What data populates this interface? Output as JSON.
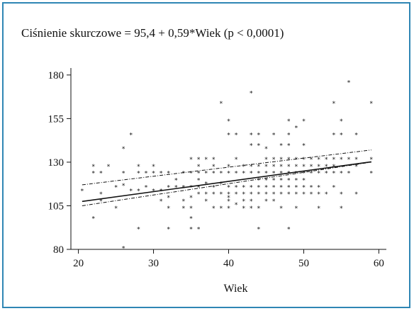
{
  "chart_data": {
    "type": "scatter",
    "title": "Ciśnienie skurczowe = 95,4 + 0,59*Wiek (p < 0,0001)",
    "xlabel": "Wiek",
    "ylabel": "",
    "xlim": [
      19,
      61
    ],
    "ylim": [
      80,
      184
    ],
    "x_ticks": [
      20,
      30,
      40,
      50,
      60
    ],
    "y_ticks": [
      80,
      105,
      130,
      155,
      180
    ],
    "grid": false,
    "marker": "*",
    "regression": {
      "intercept": 95.4,
      "slope": 0.59,
      "x_range": [
        20.5,
        59
      ]
    },
    "confidence_band": {
      "lower": [
        [
          20.5,
          105
        ],
        [
          59,
          130
        ]
      ],
      "upper": [
        [
          20.5,
          117
        ],
        [
          59,
          137
        ]
      ]
    },
    "points": [
      [
        20.5,
        114
      ],
      [
        22,
        128
      ],
      [
        22,
        124
      ],
      [
        22,
        98
      ],
      [
        23,
        112
      ],
      [
        23,
        124
      ],
      [
        23,
        108
      ],
      [
        24,
        128
      ],
      [
        25,
        116
      ],
      [
        25,
        104
      ],
      [
        26,
        138
      ],
      [
        26,
        124
      ],
      [
        26,
        117
      ],
      [
        26,
        81
      ],
      [
        27,
        146
      ],
      [
        27,
        114
      ],
      [
        28,
        128
      ],
      [
        28,
        124
      ],
      [
        28,
        114
      ],
      [
        28,
        92
      ],
      [
        29,
        124
      ],
      [
        29,
        116
      ],
      [
        30,
        128
      ],
      [
        30,
        124
      ],
      [
        30,
        114
      ],
      [
        31,
        124
      ],
      [
        31,
        114
      ],
      [
        31,
        108
      ],
      [
        32,
        124
      ],
      [
        32,
        116
      ],
      [
        32,
        110
      ],
      [
        32,
        104
      ],
      [
        32,
        92
      ],
      [
        33,
        120
      ],
      [
        33,
        116
      ],
      [
        34,
        124
      ],
      [
        34,
        116
      ],
      [
        34,
        108
      ],
      [
        34,
        104
      ],
      [
        35,
        132
      ],
      [
        35,
        124
      ],
      [
        35,
        116
      ],
      [
        35,
        110
      ],
      [
        35,
        104
      ],
      [
        35,
        98
      ],
      [
        35,
        92
      ],
      [
        36,
        132
      ],
      [
        36,
        128
      ],
      [
        36,
        124
      ],
      [
        36,
        120
      ],
      [
        36,
        116
      ],
      [
        36,
        112
      ],
      [
        36,
        92
      ],
      [
        37,
        132
      ],
      [
        37,
        124
      ],
      [
        37,
        118
      ],
      [
        37,
        112
      ],
      [
        37,
        108
      ],
      [
        38,
        132
      ],
      [
        38,
        128
      ],
      [
        38,
        124
      ],
      [
        38,
        116
      ],
      [
        38,
        112
      ],
      [
        38,
        104
      ],
      [
        39,
        164
      ],
      [
        39,
        124
      ],
      [
        39,
        118
      ],
      [
        39,
        112
      ],
      [
        39,
        104
      ],
      [
        40,
        154
      ],
      [
        40,
        146
      ],
      [
        40,
        128
      ],
      [
        40,
        124
      ],
      [
        40,
        116
      ],
      [
        40,
        112
      ],
      [
        40,
        110
      ],
      [
        40,
        108
      ],
      [
        40,
        104
      ],
      [
        41,
        146
      ],
      [
        41,
        132
      ],
      [
        41,
        124
      ],
      [
        41,
        116
      ],
      [
        41,
        112
      ],
      [
        41,
        106
      ],
      [
        42,
        128
      ],
      [
        42,
        124
      ],
      [
        42,
        116
      ],
      [
        42,
        112
      ],
      [
        42,
        108
      ],
      [
        42,
        104
      ],
      [
        43,
        170
      ],
      [
        43,
        146
      ],
      [
        43,
        140
      ],
      [
        43,
        128
      ],
      [
        43,
        124
      ],
      [
        43,
        116
      ],
      [
        43,
        112
      ],
      [
        43,
        108
      ],
      [
        43,
        104
      ],
      [
        44,
        146
      ],
      [
        44,
        140
      ],
      [
        44,
        128
      ],
      [
        44,
        124
      ],
      [
        44,
        120
      ],
      [
        44,
        116
      ],
      [
        44,
        112
      ],
      [
        44,
        104
      ],
      [
        44,
        92
      ],
      [
        45,
        138
      ],
      [
        45,
        132
      ],
      [
        45,
        128
      ],
      [
        45,
        124
      ],
      [
        45,
        120
      ],
      [
        45,
        116
      ],
      [
        45,
        112
      ],
      [
        45,
        108
      ],
      [
        46,
        146
      ],
      [
        46,
        132
      ],
      [
        46,
        128
      ],
      [
        46,
        124
      ],
      [
        46,
        120
      ],
      [
        46,
        116
      ],
      [
        46,
        112
      ],
      [
        46,
        108
      ],
      [
        47,
        140
      ],
      [
        47,
        132
      ],
      [
        47,
        128
      ],
      [
        47,
        124
      ],
      [
        47,
        120
      ],
      [
        47,
        116
      ],
      [
        47,
        112
      ],
      [
        47,
        104
      ],
      [
        48,
        154
      ],
      [
        48,
        146
      ],
      [
        48,
        140
      ],
      [
        48,
        132
      ],
      [
        48,
        128
      ],
      [
        48,
        124
      ],
      [
        48,
        120
      ],
      [
        48,
        116
      ],
      [
        48,
        112
      ],
      [
        48,
        92
      ],
      [
        49,
        150
      ],
      [
        49,
        132
      ],
      [
        49,
        128
      ],
      [
        49,
        124
      ],
      [
        49,
        120
      ],
      [
        49,
        116
      ],
      [
        49,
        112
      ],
      [
        49,
        104
      ],
      [
        50,
        154
      ],
      [
        50,
        140
      ],
      [
        50,
        132
      ],
      [
        50,
        128
      ],
      [
        50,
        124
      ],
      [
        50,
        120
      ],
      [
        50,
        116
      ],
      [
        50,
        112
      ],
      [
        51,
        132
      ],
      [
        51,
        128
      ],
      [
        51,
        124
      ],
      [
        51,
        116
      ],
      [
        51,
        112
      ],
      [
        52,
        132
      ],
      [
        52,
        128
      ],
      [
        52,
        124
      ],
      [
        52,
        116
      ],
      [
        52,
        112
      ],
      [
        52,
        104
      ],
      [
        53,
        132
      ],
      [
        53,
        128
      ],
      [
        53,
        124
      ],
      [
        53,
        112
      ],
      [
        54,
        164
      ],
      [
        54,
        146
      ],
      [
        54,
        132
      ],
      [
        54,
        128
      ],
      [
        54,
        124
      ],
      [
        54,
        116
      ],
      [
        55,
        154
      ],
      [
        55,
        146
      ],
      [
        55,
        132
      ],
      [
        55,
        124
      ],
      [
        55,
        112
      ],
      [
        55,
        104
      ],
      [
        56,
        176
      ],
      [
        56,
        132
      ],
      [
        56,
        124
      ],
      [
        57,
        146
      ],
      [
        57,
        132
      ],
      [
        57,
        128
      ],
      [
        57,
        112
      ],
      [
        59,
        164
      ],
      [
        59,
        132
      ],
      [
        59,
        124
      ]
    ]
  }
}
